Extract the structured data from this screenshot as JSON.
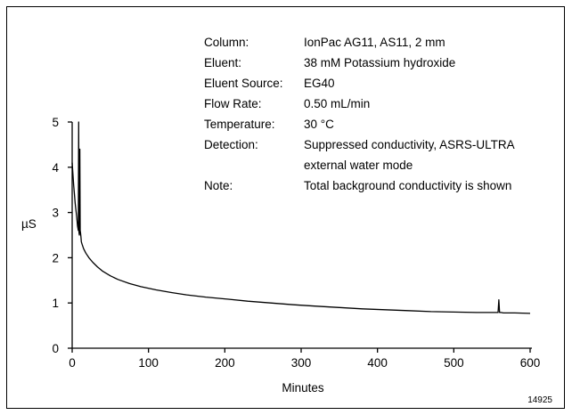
{
  "chart_data": {
    "type": "line",
    "title": "",
    "xlabel": "Minutes",
    "ylabel": "µS",
    "xlim": [
      0,
      600
    ],
    "ylim": [
      0,
      5
    ],
    "xticks": [
      0,
      100,
      200,
      300,
      400,
      500,
      600
    ],
    "yticks": [
      0,
      1,
      2,
      3,
      4,
      5
    ],
    "grid": false,
    "series": [
      {
        "x": [
          0,
          2,
          4,
          6,
          7,
          8,
          8.5,
          9,
          9.5,
          10,
          10.5,
          11,
          11.5,
          12,
          13,
          15,
          18,
          22,
          27,
          33,
          40,
          50,
          60,
          75,
          90,
          110,
          130,
          150,
          175,
          200,
          230,
          260,
          290,
          320,
          350,
          380,
          410,
          440,
          470,
          500,
          530,
          555,
          558,
          559,
          560,
          561,
          562,
          565,
          580,
          600
        ],
        "y": [
          4.1,
          3.6,
          3.2,
          2.9,
          2.7,
          2.6,
          5.0,
          2.55,
          2.5,
          4.4,
          2.6,
          2.55,
          2.45,
          2.35,
          2.3,
          2.2,
          2.1,
          2.0,
          1.9,
          1.8,
          1.7,
          1.6,
          1.52,
          1.43,
          1.36,
          1.29,
          1.23,
          1.18,
          1.13,
          1.09,
          1.04,
          1.0,
          0.96,
          0.93,
          0.9,
          0.87,
          0.85,
          0.83,
          0.81,
          0.8,
          0.79,
          0.79,
          0.79,
          1.07,
          0.79,
          0.79,
          0.79,
          0.78,
          0.78,
          0.77
        ]
      }
    ],
    "annotations": [
      {
        "label": "Column:",
        "value": "IonPac AG11, AS11, 2 mm"
      },
      {
        "label": "Eluent:",
        "value": "38 mM Potassium hydroxide"
      },
      {
        "label": "Eluent Source:",
        "value": "EG40"
      },
      {
        "label": "Flow Rate:",
        "value": "0.50 mL/min"
      },
      {
        "label": "Temperature:",
        "value": "30 °C"
      },
      {
        "label": "Detection:",
        "value": "Suppressed conductivity, ASRS-ULTRA",
        "value2": "external water mode"
      },
      {
        "label": "Note:",
        "value": "Total background conductivity is shown"
      }
    ],
    "figure_id": "14925"
  }
}
